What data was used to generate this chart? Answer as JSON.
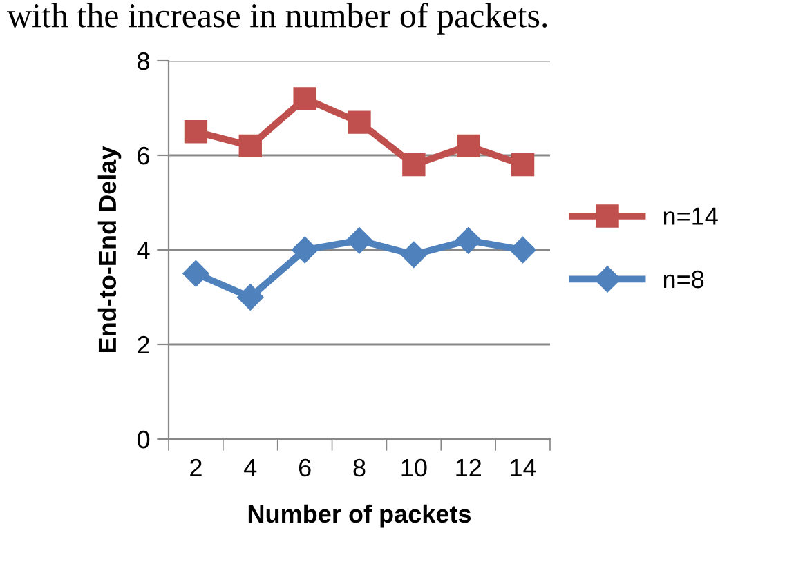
{
  "chart_data": {
    "type": "line",
    "xlabel": "Number of packets",
    "ylabel": "End-to-End Delay",
    "annotations": [
      "with the increase in number of packets."
    ],
    "categories": [
      "2",
      "4",
      "6",
      "8",
      "10",
      "12",
      "14"
    ],
    "series": [
      {
        "name": "n=14",
        "color": "#c0504d",
        "marker": "square",
        "values": [
          6.5,
          6.2,
          7.2,
          6.7,
          5.8,
          6.2,
          5.8
        ]
      },
      {
        "name": "n=8",
        "color": "#4f81bd",
        "marker": "diamond",
        "values": [
          3.5,
          3.0,
          4.0,
          4.2,
          3.9,
          4.2,
          4.0
        ]
      }
    ],
    "ylim": [
      0,
      8
    ],
    "yticks": [
      0,
      2,
      4,
      6,
      8
    ],
    "grid": "y",
    "legend": "right",
    "line_style": "solid"
  }
}
